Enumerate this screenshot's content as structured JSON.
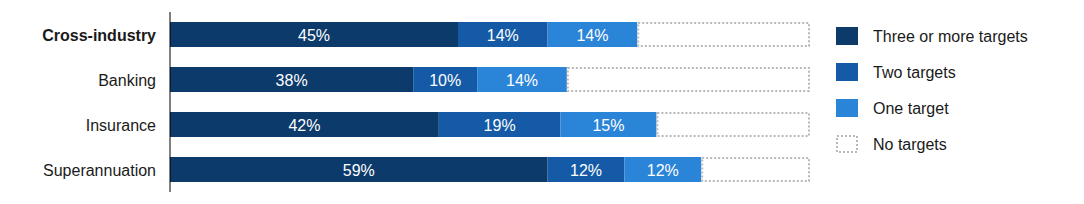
{
  "chart_data": {
    "type": "bar",
    "orientation": "horizontal",
    "stacked": true,
    "data_labels": true,
    "tick_labels": "y",
    "legend": "right",
    "categories": [
      "Cross-industry",
      "Banking",
      "Insurance",
      "Superannuation"
    ],
    "xlim": [
      0,
      100
    ],
    "series": [
      {
        "name": "Three or more targets",
        "color": "#0c3a6b",
        "values": [
          45,
          38,
          42,
          59
        ],
        "value_labels": [
          "45%",
          "38%",
          "42%",
          "59%"
        ]
      },
      {
        "name": "Two targets",
        "color": "#145aa6",
        "values": [
          14,
          10,
          19,
          12
        ],
        "value_labels": [
          "14%",
          "10%",
          "19%",
          "12%"
        ]
      },
      {
        "name": "One target",
        "color": "#2a84d8",
        "values": [
          14,
          14,
          15,
          12
        ],
        "value_labels": [
          "14%",
          "14%",
          "15%",
          "12%"
        ]
      },
      {
        "name": "No targets",
        "color": "#ffffff",
        "line_style": "dotted",
        "data_labels": false,
        "values": [
          27,
          38,
          24,
          17
        ]
      }
    ]
  }
}
